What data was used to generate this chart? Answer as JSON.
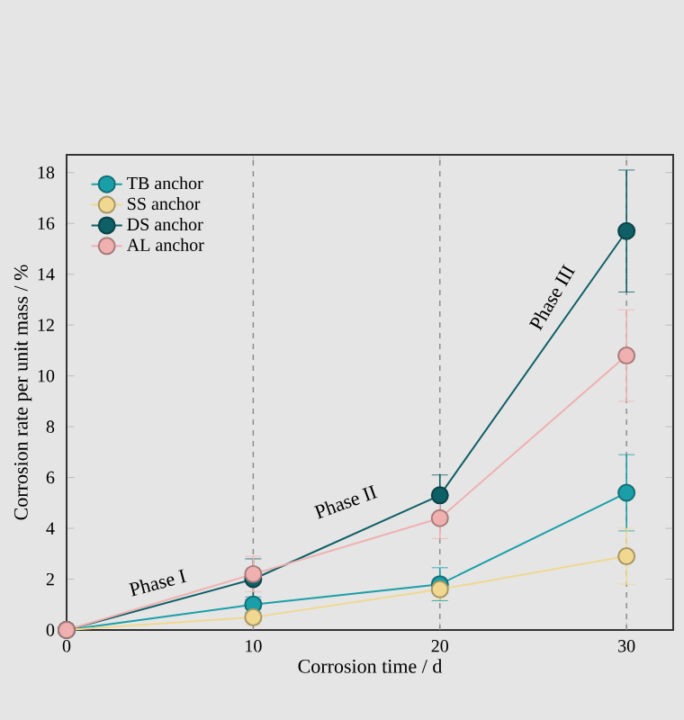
{
  "chart_data": {
    "type": "line",
    "xlabel": "Corrosion time / d",
    "ylabel": "Corrosion rate per unit mass / %",
    "x": [
      0,
      10,
      20,
      30
    ],
    "xlim": [
      0,
      32.5
    ],
    "ylim": [
      0,
      18.7
    ],
    "xticks": [
      0,
      10,
      20,
      30
    ],
    "yticks": [
      0,
      2,
      4,
      6,
      8,
      10,
      12,
      14,
      16,
      18
    ],
    "series": [
      {
        "name": "TB anchor",
        "color": "#1a9fa8",
        "values": [
          0,
          1.0,
          1.8,
          5.4
        ],
        "errors": [
          null,
          0.3,
          0.65,
          1.5
        ]
      },
      {
        "name": "SS anchor",
        "color": "#f0d890",
        "values": [
          0,
          0.5,
          1.6,
          2.9
        ],
        "errors": [
          null,
          0.3,
          0.4,
          1.1
        ]
      },
      {
        "name": "DS anchor",
        "color": "#0f5f66",
        "values": [
          0,
          2.0,
          5.3,
          15.7
        ],
        "errors": [
          null,
          0.8,
          0.8,
          2.4
        ]
      },
      {
        "name": "AL anchor",
        "color": "#f0b0b0",
        "values": [
          0,
          2.2,
          4.4,
          10.8
        ],
        "errors": [
          null,
          0.7,
          0.8,
          1.8
        ]
      }
    ],
    "ref_lines": [
      {
        "axis": "x",
        "value": 10,
        "color": "#888888",
        "line_style": "dashed"
      },
      {
        "axis": "x",
        "value": 20,
        "color": "#888888",
        "line_style": "dashed"
      },
      {
        "axis": "x",
        "value": 30,
        "color": "#888888",
        "line_style": "dashed"
      }
    ],
    "annotations": [
      "Phase I",
      "Phase II",
      "Phase III"
    ],
    "legend": "top left",
    "marker": "circle",
    "line_style": "solid",
    "grid": false
  }
}
